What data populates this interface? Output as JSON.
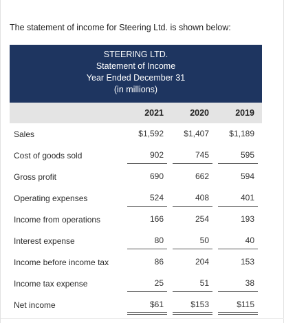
{
  "intro": "The statement of income for Steering Ltd. is shown below:",
  "header": {
    "company": "STEERING LTD.",
    "title": "Statement of Income",
    "period": "Year Ended December 31",
    "units": "(in millions)"
  },
  "years": [
    "2021",
    "2020",
    "2019"
  ],
  "rows": [
    {
      "label": "Sales",
      "values": [
        "$1,592",
        "$1,407",
        "$1,189"
      ]
    },
    {
      "label": "Cost of goods sold",
      "values": [
        "902",
        "745",
        "595"
      ]
    },
    {
      "label": "Gross profit",
      "values": [
        "690",
        "662",
        "594"
      ]
    },
    {
      "label": "Operating expenses",
      "values": [
        "524",
        "408",
        "401"
      ]
    },
    {
      "label": "Income from operations",
      "values": [
        "166",
        "254",
        "193"
      ]
    },
    {
      "label": "Interest expense",
      "values": [
        "80",
        "50",
        "40"
      ]
    },
    {
      "label": "Income before income tax",
      "values": [
        "86",
        "204",
        "153"
      ]
    },
    {
      "label": "Income tax expense",
      "values": [
        "25",
        "51",
        "38"
      ]
    },
    {
      "label": "Net income",
      "values": [
        "$61",
        "$153",
        "$115"
      ]
    }
  ],
  "colors": {
    "header_bg": "#1e3560",
    "years_bg": "#e4e4e4"
  }
}
